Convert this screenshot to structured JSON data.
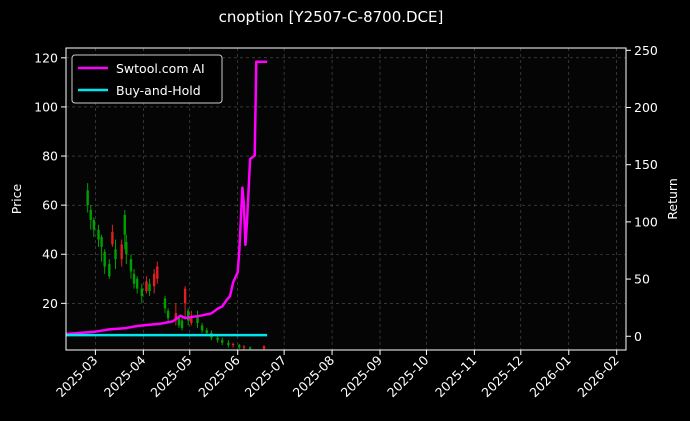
{
  "chart_data": {
    "type": "line",
    "title": "cnoption [Y2507-C-8700.DCE]",
    "ylabel": "Price",
    "y2label": "Return",
    "ylim": [
      1,
      124
    ],
    "y2lim": [
      -12,
      252
    ],
    "yticks": [
      20,
      40,
      60,
      80,
      100,
      120
    ],
    "y2ticks": [
      0,
      50,
      100,
      150,
      200,
      250
    ],
    "xlim": [
      "2025-02-10",
      "2026-02-07"
    ],
    "xticks": [
      "2025-03-01",
      "2025-04-01",
      "2025-05-01",
      "2025-06-01",
      "2025-07-01",
      "2025-08-01",
      "2025-09-01",
      "2025-10-01",
      "2025-11-01",
      "2025-12-01",
      "2026-01-01",
      "2026-02-01"
    ],
    "xtick_labels": [
      "2025-03",
      "2025-04",
      "2025-05",
      "2025-06",
      "2025-07",
      "2025-08",
      "2025-09",
      "2025-10",
      "2025-11",
      "2025-12",
      "2026-01",
      "2026-02"
    ],
    "grid": true,
    "legend_position": "top-left",
    "colors": {
      "ai": "#ff00ff",
      "bh": "#00e5ee",
      "up": "#00a000",
      "down": "#e02020",
      "grid": "#555555"
    },
    "series": [
      {
        "name": "Swtool.com AI",
        "axis": "right",
        "x": [
          "2025-02-10",
          "2025-02-20",
          "2025-03-01",
          "2025-03-10",
          "2025-03-20",
          "2025-03-28",
          "2025-04-05",
          "2025-04-12",
          "2025-04-20",
          "2025-04-25",
          "2025-04-28",
          "2025-05-03",
          "2025-05-08",
          "2025-05-15",
          "2025-05-19",
          "2025-05-22",
          "2025-05-25",
          "2025-05-27",
          "2025-05-29",
          "2025-06-01",
          "2025-06-02",
          "2025-06-04",
          "2025-06-05",
          "2025-06-06",
          "2025-06-07",
          "2025-06-09",
          "2025-06-12",
          "2025-06-13",
          "2025-06-15",
          "2025-06-20"
        ],
        "values": [
          2,
          3,
          4,
          6,
          7,
          9,
          10,
          11,
          13,
          18,
          16,
          17,
          18,
          20,
          24,
          26,
          32,
          35,
          47,
          56,
          75,
          130,
          115,
          80,
          100,
          155,
          158,
          240,
          240,
          240
        ]
      },
      {
        "name": "Buy-and-Hold",
        "axis": "right",
        "x": [
          "2025-02-10",
          "2025-06-20"
        ],
        "values": [
          1,
          1
        ]
      }
    ],
    "candles": [
      {
        "x": "2025-02-24",
        "open": 66,
        "close": 60,
        "low": 57,
        "high": 69
      },
      {
        "x": "2025-02-26",
        "open": 58,
        "close": 54,
        "low": 50,
        "high": 60
      },
      {
        "x": "2025-02-28",
        "open": 54,
        "close": 50,
        "low": 47,
        "high": 55
      },
      {
        "x": "2025-03-03",
        "open": 50,
        "close": 46,
        "low": 43,
        "high": 52
      },
      {
        "x": "2025-03-05",
        "open": 47,
        "close": 43,
        "low": 37,
        "high": 48
      },
      {
        "x": "2025-03-07",
        "open": 41,
        "close": 35,
        "low": 32,
        "high": 42
      },
      {
        "x": "2025-03-10",
        "open": 36,
        "close": 31,
        "low": 30,
        "high": 38
      },
      {
        "x": "2025-03-12",
        "open": 44,
        "close": 49,
        "low": 43,
        "high": 52
      },
      {
        "x": "2025-03-14",
        "open": 42,
        "close": 38,
        "low": 34,
        "high": 46
      },
      {
        "x": "2025-03-18",
        "open": 38,
        "close": 44,
        "low": 35,
        "high": 46
      },
      {
        "x": "2025-03-20",
        "open": 56,
        "close": 48,
        "low": 42,
        "high": 58
      },
      {
        "x": "2025-03-21",
        "open": 45,
        "close": 40,
        "low": 36,
        "high": 48
      },
      {
        "x": "2025-03-24",
        "open": 38,
        "close": 33,
        "low": 30,
        "high": 40
      },
      {
        "x": "2025-03-26",
        "open": 32,
        "close": 28,
        "low": 26,
        "high": 34
      },
      {
        "x": "2025-03-28",
        "open": 30,
        "close": 26,
        "low": 24,
        "high": 31
      },
      {
        "x": "2025-03-31",
        "open": 26,
        "close": 23,
        "low": 20,
        "high": 28
      },
      {
        "x": "2025-04-03",
        "open": 25,
        "close": 29,
        "low": 24,
        "high": 31
      },
      {
        "x": "2025-04-05",
        "open": 28,
        "close": 25,
        "low": 23,
        "high": 30
      },
      {
        "x": "2025-04-08",
        "open": 27,
        "close": 32,
        "low": 24,
        "high": 34
      },
      {
        "x": "2025-04-10",
        "open": 30,
        "close": 35,
        "low": 28,
        "high": 37
      },
      {
        "x": "2025-04-15",
        "open": 22,
        "close": 18,
        "low": 16,
        "high": 23
      },
      {
        "x": "2025-04-17",
        "open": 17,
        "close": 14,
        "low": 12,
        "high": 18
      },
      {
        "x": "2025-04-22",
        "open": 13,
        "close": 16,
        "low": 11,
        "high": 20
      },
      {
        "x": "2025-04-24",
        "open": 14,
        "close": 11,
        "low": 10,
        "high": 15
      },
      {
        "x": "2025-04-26",
        "open": 13,
        "close": 10,
        "low": 9,
        "high": 14
      },
      {
        "x": "2025-04-28",
        "open": 20,
        "close": 26,
        "low": 14,
        "high": 27
      },
      {
        "x": "2025-04-30",
        "open": 17,
        "close": 13,
        "low": 11,
        "high": 18
      },
      {
        "x": "2025-05-02",
        "open": 12,
        "close": 15,
        "low": 11,
        "high": 17
      },
      {
        "x": "2025-05-06",
        "open": 15,
        "close": 12,
        "low": 10,
        "high": 17
      },
      {
        "x": "2025-05-09",
        "open": 11,
        "close": 9,
        "low": 8,
        "high": 12
      },
      {
        "x": "2025-05-12",
        "open": 9,
        "close": 8,
        "low": 7,
        "high": 10
      },
      {
        "x": "2025-05-15",
        "open": 8,
        "close": 6,
        "low": 5,
        "high": 9
      },
      {
        "x": "2025-05-19",
        "open": 6,
        "close": 5,
        "low": 4,
        "high": 7
      },
      {
        "x": "2025-05-22",
        "open": 5,
        "close": 4,
        "low": 3,
        "high": 6
      },
      {
        "x": "2025-05-26",
        "open": 4,
        "close": 3,
        "low": 2,
        "high": 5
      },
      {
        "x": "2025-05-29",
        "open": 3,
        "close": 3.5,
        "low": 2,
        "high": 4
      },
      {
        "x": "2025-06-02",
        "open": 3,
        "close": 2,
        "low": 1.5,
        "high": 3.5
      },
      {
        "x": "2025-06-05",
        "open": 2,
        "close": 2.5,
        "low": 1,
        "high": 3
      },
      {
        "x": "2025-06-09",
        "open": 2,
        "close": 1.5,
        "low": 1,
        "high": 2.5
      },
      {
        "x": "2025-06-18",
        "open": 1.5,
        "close": 2.5,
        "low": 1,
        "high": 3
      }
    ]
  }
}
